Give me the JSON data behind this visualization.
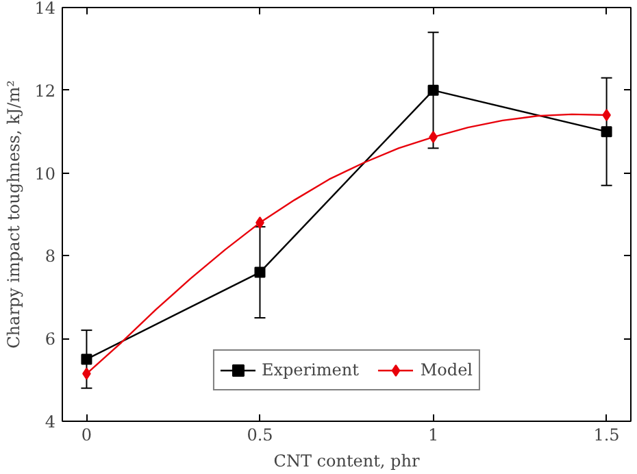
{
  "chart_data": {
    "type": "line",
    "xlabel": "CNT content, phr",
    "ylabel": "Charpy impact toughness, kJ/m²",
    "x": [
      0,
      0.5,
      1,
      1.5
    ],
    "series": [
      {
        "name": "Experiment",
        "color": "#000000",
        "marker": "square",
        "values": [
          5.5,
          7.6,
          12.0,
          11.0
        ],
        "errors": [
          0.7,
          1.1,
          1.4,
          1.3
        ]
      },
      {
        "name": "Model",
        "type": "scatter",
        "color": "#e8000b",
        "marker": "diamond",
        "values": [
          5.15,
          8.8,
          10.87,
          11.4
        ]
      },
      {
        "type": "line",
        "color": "#e8000b",
        "marker": "none",
        "x": [
          0,
          0.1,
          0.2,
          0.3,
          0.4,
          0.5,
          0.6,
          0.7,
          0.8,
          0.9,
          1.0,
          1.1,
          1.2,
          1.3,
          1.4,
          1.5
        ],
        "values": [
          5.15,
          5.9,
          6.7,
          7.45,
          8.15,
          8.8,
          9.35,
          9.85,
          10.25,
          10.6,
          10.87,
          11.1,
          11.27,
          11.38,
          11.42,
          11.4
        ]
      }
    ],
    "xlim": [
      -0.07,
      1.57
    ],
    "ylim": [
      4,
      14
    ],
    "xticks": [
      0,
      0.5,
      1,
      1.5
    ],
    "yticks": [
      4,
      6,
      8,
      10,
      12,
      14
    ],
    "grid": false,
    "legend": "bottom",
    "line_style": "solid"
  }
}
